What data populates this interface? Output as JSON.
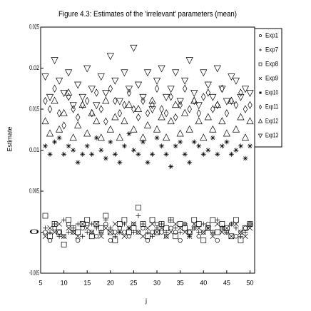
{
  "chart_data": {
    "type": "scatter",
    "title": "Figure 4.3: Estimates of the 'irrelevant' parameters (mean)",
    "xlabel": "j",
    "ylabel": "Estimate",
    "x": [
      6,
      7,
      8,
      9,
      10,
      11,
      12,
      13,
      14,
      15,
      16,
      17,
      18,
      19,
      20,
      21,
      22,
      23,
      24,
      25,
      26,
      27,
      28,
      29,
      30,
      31,
      32,
      33,
      34,
      35,
      36,
      37,
      38,
      39,
      40,
      41,
      42,
      43,
      44,
      45,
      46,
      47,
      48,
      49,
      50
    ],
    "xlim": [
      5,
      51
    ],
    "xticks": [
      5,
      10,
      15,
      20,
      25,
      30,
      35,
      40,
      45,
      50
    ],
    "ylim": [
      -0.005,
      0.025
    ],
    "yticks": [
      -0.005,
      0,
      0.005,
      0.01,
      0.015,
      0.02,
      0.025
    ],
    "legend_loc": "upper right",
    "series": [
      {
        "name": "Exp1",
        "color": "#000000",
        "marker": "circle",
        "values": [
          0,
          -0.001,
          0.0005,
          0,
          -0.0005,
          0.001,
          0,
          -0.001,
          0.0005,
          0.001,
          0,
          -0.0005,
          0,
          0.001,
          -0.001,
          0,
          0.0005,
          0,
          -0.0005,
          0.001,
          0,
          0.0005,
          -0.001,
          0,
          0.001,
          0,
          -0.0005,
          0.0005,
          0,
          -0.001,
          0.001,
          0,
          0.0005,
          -0.0005,
          0,
          0.001,
          0,
          -0.001,
          0.0005,
          0,
          0.001,
          -0.0005,
          0,
          0.0005,
          0.001
        ]
      },
      {
        "name": "Exp7",
        "color": "#000000",
        "marker": "plus",
        "values": [
          0.0005,
          0,
          0.001,
          -0.0005,
          0.0015,
          0,
          0.0005,
          0.001,
          -0.0005,
          0,
          0.001,
          0.0005,
          0,
          0.0015,
          0.0005,
          -0.0005,
          0,
          0.001,
          0.0005,
          0,
          0.002,
          0.001,
          0,
          -0.0005,
          0.0005,
          0.001,
          0,
          0.0015,
          0.0005,
          0,
          0.001,
          -0.0005,
          0.0005,
          0,
          0.001,
          0.0005,
          0,
          0.0015,
          0.0005,
          0,
          0.001,
          0.0005,
          -0.0005,
          0,
          0.001
        ]
      },
      {
        "name": "Exp8",
        "color": "#000000",
        "marker": "square",
        "values": [
          0.002,
          -0.0005,
          0.001,
          0,
          -0.0015,
          0.0015,
          0.0005,
          0,
          0.001,
          0.0015,
          -0.0005,
          0.001,
          0.0005,
          0.002,
          0,
          -0.001,
          0.001,
          0.0015,
          0,
          0.0005,
          0.003,
          0.001,
          -0.0005,
          0.0015,
          0,
          0.001,
          0.0005,
          0.0015,
          -0.0005,
          0.001,
          0.0005,
          0,
          0.0015,
          0.001,
          -0.001,
          0.0005,
          0.0015,
          0,
          0.001,
          0.0005,
          -0.0005,
          0.0015,
          -0.001,
          0.0005,
          0.001
        ]
      },
      {
        "name": "Exp9",
        "color": "#000000",
        "marker": "x",
        "values": [
          -0.0005,
          0.0005,
          0,
          0.001,
          -0.0005,
          0.0005,
          0,
          -0.0005,
          0.001,
          0.0005,
          0,
          0.001,
          -0.0005,
          0.0005,
          0,
          0.001,
          0,
          -0.0005,
          0.0005,
          0.001,
          0,
          -0.0005,
          0.0005,
          0.001,
          0,
          0.0005,
          -0.0005,
          0,
          0.001,
          0.0005,
          0,
          -0.0005,
          0.001,
          0.0005,
          0,
          0.0005,
          -0.0005,
          0.001,
          0,
          0.0005,
          -0.0005,
          0.001,
          0,
          -0.0005,
          0.0005
        ]
      },
      {
        "name": "Exp10",
        "color": "#000000",
        "marker": "star",
        "values": [
          0.0105,
          0.0095,
          0.011,
          0.0115,
          0.0095,
          0.0105,
          0.01,
          0.0085,
          0.0095,
          0.0105,
          0.0095,
          0.0115,
          0.01,
          0.009,
          0.011,
          0.0095,
          0.0085,
          0.0105,
          0.012,
          0.01,
          0.0095,
          0.011,
          0.0085,
          0.0095,
          0.0115,
          0.0105,
          0.0095,
          0.008,
          0.0105,
          0.011,
          0.0095,
          0.0085,
          0.011,
          0.0105,
          0.0095,
          0.01,
          0.0115,
          0.0095,
          0.0105,
          0.011,
          0.0095,
          0.01,
          0.0105,
          0.009,
          0.0105
        ]
      },
      {
        "name": "Exp11",
        "color": "#000000",
        "marker": "diamond",
        "values": [
          0.016,
          0.015,
          0.0175,
          0.0145,
          0.013,
          0.0165,
          0.015,
          0.014,
          0.0155,
          0.016,
          0.0145,
          0.017,
          0.015,
          0.0135,
          0.0175,
          0.016,
          0.0145,
          0.0155,
          0.017,
          0.015,
          0.014,
          0.016,
          0.0145,
          0.0155,
          0.0175,
          0.015,
          0.0145,
          0.0165,
          0.014,
          0.0155,
          0.0175,
          0.015,
          0.016,
          0.0145,
          0.0165,
          0.017,
          0.015,
          0.0155,
          0.0175,
          0.0145,
          0.016,
          0.0155,
          0.017,
          0.015,
          0.0155
        ]
      },
      {
        "name": "Exp12",
        "color": "#000000",
        "marker": "triangle-up",
        "values": [
          0.0135,
          0.012,
          0.016,
          0.0125,
          0.0145,
          0.017,
          0.0115,
          0.013,
          0.0155,
          0.012,
          0.0145,
          0.0135,
          0.0115,
          0.016,
          0.0125,
          0.014,
          0.0115,
          0.0135,
          0.0155,
          0.0125,
          0.015,
          0.0115,
          0.013,
          0.016,
          0.0125,
          0.014,
          0.0115,
          0.0135,
          0.0155,
          0.012,
          0.0145,
          0.0125,
          0.016,
          0.0135,
          0.0115,
          0.014,
          0.0125,
          0.0155,
          0.0135,
          0.012,
          0.016,
          0.0125,
          0.014,
          0.0115,
          0.0135
        ]
      },
      {
        "name": "Exp13",
        "color": "#000000",
        "marker": "triangle-down",
        "values": [
          0.019,
          0.0165,
          0.021,
          0.0185,
          0.017,
          0.0195,
          0.0155,
          0.018,
          0.0165,
          0.02,
          0.0175,
          0.0155,
          0.019,
          0.017,
          0.0215,
          0.0185,
          0.016,
          0.0195,
          0.0175,
          0.0225,
          0.018,
          0.0165,
          0.0195,
          0.015,
          0.0185,
          0.02,
          0.0165,
          0.0175,
          0.0195,
          0.016,
          0.0185,
          0.021,
          0.017,
          0.0155,
          0.0195,
          0.018,
          0.0165,
          0.02,
          0.0175,
          0.016,
          0.019,
          0.0185,
          0.0165,
          0.0175,
          0.017
        ]
      }
    ]
  }
}
